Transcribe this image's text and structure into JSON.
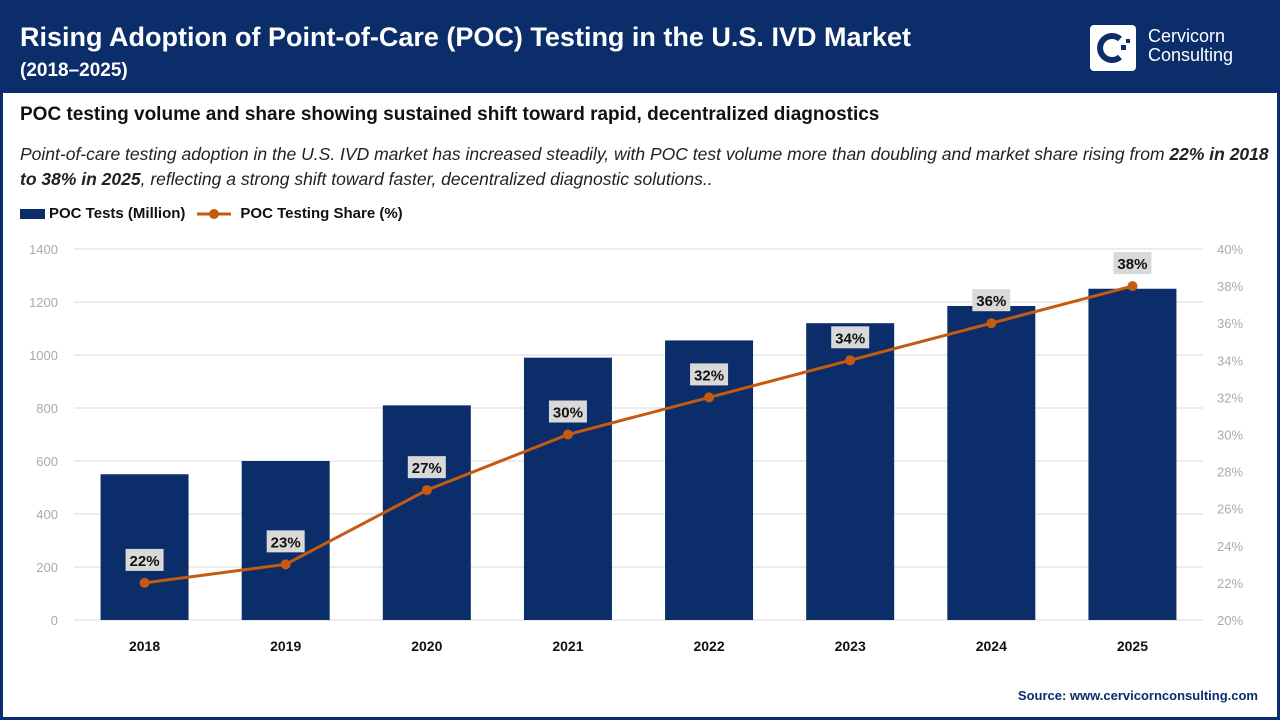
{
  "header": {
    "title": "Rising Adoption of Point-of-Care (POC) Testing in the U.S. IVD Market",
    "title_years": "(2018–2025)",
    "logo_line1": "Cervicorn",
    "logo_line2": "Consulting"
  },
  "subtitle": "POC testing volume and share showing sustained shift toward rapid, decentralized diagnostics",
  "description": {
    "part1": "Point-of-care testing adoption in the U.S. IVD market has increased steadily, with POC test volume more than doubling and market share rising from ",
    "bold": "22% in 2018 to 38% in 2025",
    "part2": ", reflecting a strong shift toward faster, decentralized diagnostic solutions.."
  },
  "source": "Source: www.cervicornconsulting.com",
  "colors": {
    "navy": "#0b2e6b",
    "orange": "#c55a11",
    "grid": "#d9d9d9"
  },
  "chart_data": {
    "type": "bar+line",
    "categories": [
      "2018",
      "2019",
      "2020",
      "2021",
      "2022",
      "2023",
      "2024",
      "2025"
    ],
    "series": [
      {
        "name": "POC Tests (Million)",
        "type": "bar",
        "axis": "left",
        "values": [
          550,
          600,
          810,
          990,
          1055,
          1120,
          1185,
          1250
        ]
      },
      {
        "name": "POC Testing Share (%)",
        "type": "line",
        "axis": "right",
        "values": [
          22,
          23,
          27,
          30,
          32,
          34,
          36,
          38
        ],
        "labels": [
          "22%",
          "23%",
          "27%",
          "30%",
          "32%",
          "34%",
          "36%",
          "38%"
        ]
      }
    ],
    "y_left": {
      "range": [
        0,
        1400
      ],
      "ticks": [
        "0",
        "200",
        "400",
        "600",
        "800",
        "1000",
        "1200",
        "1400"
      ]
    },
    "y_right": {
      "range": [
        20,
        40
      ],
      "ticks": [
        "20%",
        "22%",
        "24%",
        "26%",
        "28%",
        "30%",
        "32%",
        "34%",
        "36%",
        "38%",
        "40%"
      ]
    },
    "grid": true,
    "legend": "top-left"
  }
}
